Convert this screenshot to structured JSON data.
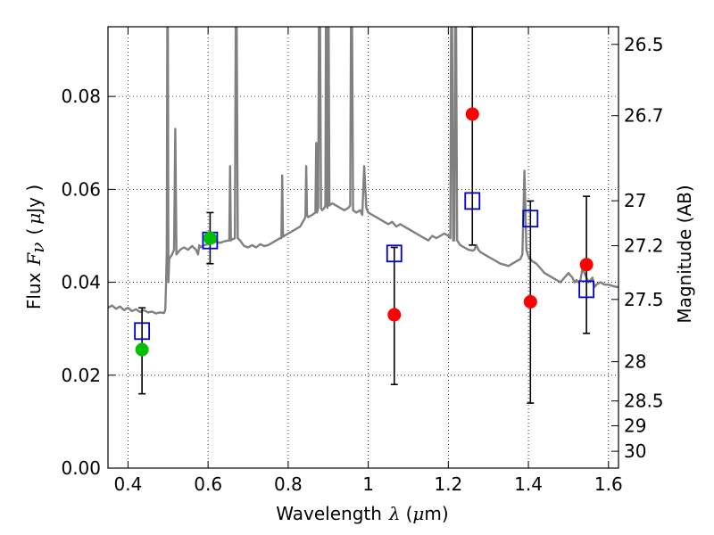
{
  "chart_data": {
    "type": "scatter",
    "x_label_prefix": "Wavelength",
    "x_label_symbol": "λ",
    "x_label_unit_open": "(",
    "x_label_unit_mu": "μ",
    "x_label_unit_rest": "m)",
    "y_label_prefix": "Flux",
    "y_label_symbol": "F",
    "y_label_sub": "ν",
    "y_label_unit_open": "(",
    "y_label_unit_mu": "μ",
    "y_label_unit_rest": "Jy )",
    "y2_label": "Magnitude (AB)",
    "xlim": [
      0.35,
      1.625
    ],
    "ylim": [
      0.0,
      0.095
    ],
    "grid": true,
    "x_ticks": [
      {
        "value": 0.4,
        "label": "0.4"
      },
      {
        "value": 0.6,
        "label": "0.6"
      },
      {
        "value": 0.8,
        "label": "0.8"
      },
      {
        "value": 1.0,
        "label": "1"
      },
      {
        "value": 1.2,
        "label": "1.2"
      },
      {
        "value": 1.4,
        "label": "1.4"
      },
      {
        "value": 1.6,
        "label": "1.6"
      }
    ],
    "y_ticks": [
      {
        "value": 0.0,
        "label": "0.00"
      },
      {
        "value": 0.02,
        "label": "0.02"
      },
      {
        "value": 0.04,
        "label": "0.04"
      },
      {
        "value": 0.06,
        "label": "0.06"
      },
      {
        "value": 0.08,
        "label": "0.08"
      }
    ],
    "mag_ticks": [
      {
        "value": 26.5,
        "label": "26.5"
      },
      {
        "value": 26.7,
        "label": "26.7"
      },
      {
        "value": 27.0,
        "label": "27"
      },
      {
        "value": 27.2,
        "label": "27.2"
      },
      {
        "value": 27.5,
        "label": "27.5"
      },
      {
        "value": 28.0,
        "label": "28"
      },
      {
        "value": 28.5,
        "label": "28.5"
      },
      {
        "value": 29.0,
        "label": "29"
      },
      {
        "value": 30.0,
        "label": "30"
      }
    ],
    "colors": {
      "model": "#808080",
      "observed_green": "#00c000",
      "observed_red": "#ff0000",
      "model_box": "#0000cc",
      "errorbar": "#000000"
    },
    "model_spectrum": [
      [
        0.35,
        0.0345
      ],
      [
        0.36,
        0.035
      ],
      [
        0.37,
        0.0343
      ],
      [
        0.38,
        0.0348
      ],
      [
        0.39,
        0.034
      ],
      [
        0.4,
        0.0345
      ],
      [
        0.41,
        0.0338
      ],
      [
        0.42,
        0.0342
      ],
      [
        0.43,
        0.0336
      ],
      [
        0.44,
        0.034
      ],
      [
        0.45,
        0.0335
      ],
      [
        0.46,
        0.0337
      ],
      [
        0.47,
        0.0333
      ],
      [
        0.48,
        0.0335
      ],
      [
        0.49,
        0.0334
      ],
      [
        0.493,
        0.034
      ],
      [
        0.495,
        0.04
      ],
      [
        0.497,
        0.047
      ],
      [
        0.499,
        0.12
      ],
      [
        0.501,
        0.04
      ],
      [
        0.503,
        0.045
      ],
      [
        0.51,
        0.046
      ],
      [
        0.515,
        0.047
      ],
      [
        0.518,
        0.073
      ],
      [
        0.521,
        0.046
      ],
      [
        0.53,
        0.047
      ],
      [
        0.54,
        0.0475
      ],
      [
        0.55,
        0.047
      ],
      [
        0.56,
        0.0478
      ],
      [
        0.57,
        0.047
      ],
      [
        0.575,
        0.046
      ],
      [
        0.578,
        0.048
      ],
      [
        0.58,
        0.0475
      ],
      [
        0.59,
        0.048
      ],
      [
        0.6,
        0.0482
      ],
      [
        0.61,
        0.0485
      ],
      [
        0.62,
        0.0487
      ],
      [
        0.63,
        0.0485
      ],
      [
        0.64,
        0.0488
      ],
      [
        0.65,
        0.049
      ],
      [
        0.653,
        0.049
      ],
      [
        0.655,
        0.065
      ],
      [
        0.657,
        0.049
      ],
      [
        0.66,
        0.0492
      ],
      [
        0.667,
        0.0495
      ],
      [
        0.67,
        0.12
      ],
      [
        0.674,
        0.0495
      ],
      [
        0.68,
        0.049
      ],
      [
        0.69,
        0.0478
      ],
      [
        0.7,
        0.0475
      ],
      [
        0.71,
        0.048
      ],
      [
        0.72,
        0.0475
      ],
      [
        0.73,
        0.0482
      ],
      [
        0.74,
        0.0478
      ],
      [
        0.75,
        0.048
      ],
      [
        0.76,
        0.0485
      ],
      [
        0.77,
        0.049
      ],
      [
        0.78,
        0.0495
      ],
      [
        0.783,
        0.0495
      ],
      [
        0.785,
        0.063
      ],
      [
        0.787,
        0.0498
      ],
      [
        0.79,
        0.05
      ],
      [
        0.8,
        0.0505
      ],
      [
        0.81,
        0.051
      ],
      [
        0.82,
        0.0515
      ],
      [
        0.83,
        0.052
      ],
      [
        0.84,
        0.0535
      ],
      [
        0.843,
        0.054
      ],
      [
        0.845,
        0.065
      ],
      [
        0.847,
        0.0545
      ],
      [
        0.85,
        0.054
      ],
      [
        0.86,
        0.0545
      ],
      [
        0.868,
        0.055
      ],
      [
        0.87,
        0.07
      ],
      [
        0.872,
        0.055
      ],
      [
        0.875,
        0.056
      ],
      [
        0.878,
        0.12
      ],
      [
        0.882,
        0.056
      ],
      [
        0.885,
        0.0555
      ],
      [
        0.89,
        0.056
      ],
      [
        0.893,
        0.0565
      ],
      [
        0.895,
        0.12
      ],
      [
        0.898,
        0.056
      ],
      [
        0.9,
        0.12
      ],
      [
        0.903,
        0.0565
      ],
      [
        0.91,
        0.057
      ],
      [
        0.92,
        0.0565
      ],
      [
        0.93,
        0.056
      ],
      [
        0.94,
        0.0555
      ],
      [
        0.95,
        0.056
      ],
      [
        0.955,
        0.0565
      ],
      [
        0.958,
        0.12
      ],
      [
        0.962,
        0.0555
      ],
      [
        0.97,
        0.055
      ],
      [
        0.98,
        0.0555
      ],
      [
        0.985,
        0.0545
      ],
      [
        0.99,
        0.065
      ],
      [
        0.995,
        0.056
      ],
      [
        1.0,
        0.055
      ],
      [
        1.01,
        0.0545
      ],
      [
        1.02,
        0.054
      ],
      [
        1.03,
        0.0535
      ],
      [
        1.04,
        0.053
      ],
      [
        1.05,
        0.0525
      ],
      [
        1.06,
        0.053
      ],
      [
        1.07,
        0.052
      ],
      [
        1.08,
        0.0525
      ],
      [
        1.09,
        0.052
      ],
      [
        1.1,
        0.0515
      ],
      [
        1.11,
        0.051
      ],
      [
        1.12,
        0.0505
      ],
      [
        1.13,
        0.05
      ],
      [
        1.14,
        0.0495
      ],
      [
        1.15,
        0.049
      ],
      [
        1.16,
        0.05
      ],
      [
        1.17,
        0.0495
      ],
      [
        1.18,
        0.05
      ],
      [
        1.19,
        0.0505
      ],
      [
        1.2,
        0.05
      ],
      [
        1.205,
        0.0495
      ],
      [
        1.208,
        0.12
      ],
      [
        1.212,
        0.049
      ],
      [
        1.215,
        0.049
      ],
      [
        1.218,
        0.12
      ],
      [
        1.222,
        0.049
      ],
      [
        1.23,
        0.048
      ],
      [
        1.24,
        0.0475
      ],
      [
        1.25,
        0.047
      ],
      [
        1.26,
        0.0468
      ],
      [
        1.265,
        0.047
      ],
      [
        1.27,
        0.048
      ],
      [
        1.275,
        0.047
      ],
      [
        1.28,
        0.0465
      ],
      [
        1.29,
        0.046
      ],
      [
        1.3,
        0.0455
      ],
      [
        1.31,
        0.045
      ],
      [
        1.32,
        0.0445
      ],
      [
        1.33,
        0.044
      ],
      [
        1.34,
        0.0438
      ],
      [
        1.35,
        0.0435
      ],
      [
        1.36,
        0.044
      ],
      [
        1.37,
        0.0445
      ],
      [
        1.38,
        0.045
      ],
      [
        1.385,
        0.046
      ],
      [
        1.39,
        0.064
      ],
      [
        1.395,
        0.047
      ],
      [
        1.4,
        0.0455
      ],
      [
        1.41,
        0.0445
      ],
      [
        1.42,
        0.044
      ],
      [
        1.43,
        0.043
      ],
      [
        1.44,
        0.042
      ],
      [
        1.45,
        0.0415
      ],
      [
        1.46,
        0.041
      ],
      [
        1.47,
        0.0405
      ],
      [
        1.48,
        0.04
      ],
      [
        1.49,
        0.041
      ],
      [
        1.5,
        0.042
      ],
      [
        1.51,
        0.041
      ],
      [
        1.515,
        0.04
      ],
      [
        1.52,
        0.0405
      ],
      [
        1.525,
        0.04
      ],
      [
        1.53,
        0.0405
      ],
      [
        1.535,
        0.043
      ],
      [
        1.54,
        0.042
      ],
      [
        1.545,
        0.041
      ],
      [
        1.55,
        0.04
      ],
      [
        1.56,
        0.041
      ],
      [
        1.565,
        0.039
      ],
      [
        1.57,
        0.0395
      ],
      [
        1.58,
        0.04
      ],
      [
        1.59,
        0.0395
      ],
      [
        1.6,
        0.0395
      ],
      [
        1.61,
        0.0392
      ],
      [
        1.62,
        0.039
      ],
      [
        1.625,
        0.039
      ]
    ],
    "observed_points": [
      {
        "x": 0.435,
        "y": 0.0255,
        "color": "green",
        "err_low": 0.016,
        "err_high": 0.0345
      },
      {
        "x": 0.605,
        "y": 0.0495,
        "color": "green",
        "err_low": 0.044,
        "err_high": 0.055
      },
      {
        "x": 1.065,
        "y": 0.033,
        "color": "red",
        "err_low": 0.018,
        "err_high": 0.0475
      },
      {
        "x": 1.26,
        "y": 0.0762,
        "color": "red",
        "err_low": 0.048,
        "err_high": 0.095
      },
      {
        "x": 1.405,
        "y": 0.0358,
        "color": "red",
        "err_low": 0.014,
        "err_high": 0.0575
      },
      {
        "x": 1.545,
        "y": 0.0438,
        "color": "red",
        "err_low": 0.029,
        "err_high": 0.0585
      }
    ],
    "model_points": [
      {
        "x": 0.435,
        "y": 0.0295
      },
      {
        "x": 0.605,
        "y": 0.049
      },
      {
        "x": 1.065,
        "y": 0.0462
      },
      {
        "x": 1.26,
        "y": 0.0575
      },
      {
        "x": 1.405,
        "y": 0.0537
      },
      {
        "x": 1.545,
        "y": 0.0385
      }
    ]
  }
}
